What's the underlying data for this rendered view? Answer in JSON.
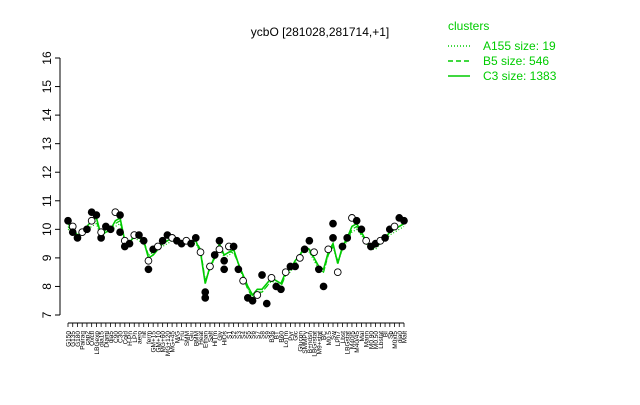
{
  "chart_data": {
    "type": "line",
    "title": "ycbO [281028,281714,+1]",
    "xlabel": "",
    "ylabel": "",
    "ylim": [
      7,
      16
    ],
    "yticks": [
      7,
      8,
      9,
      10,
      11,
      12,
      13,
      14,
      15,
      16
    ],
    "categories": [
      "G150",
      "G135",
      "G180",
      "Pairaq",
      "cap2",
      "Oxctl",
      "LBGexp",
      "dia15",
      "Diami",
      "dia5",
      "C90",
      "C30",
      "Cold",
      "H-Pn",
      "LPh",
      "aero",
      "nit",
      "ferm",
      "GM+15",
      "GM+10",
      "MG+60",
      "MG+120",
      "MG+45",
      "M/G",
      "Fru",
      "SMM",
      "Glu",
      "BMM",
      "Heat",
      "Ethan",
      "Salt",
      "HiTm",
      "Gly",
      "HiOs",
      "S1",
      "S2",
      "S3",
      "S4",
      "S5",
      "S6",
      "S7",
      "S8",
      "S9",
      "B36",
      "BT",
      "B60",
      "LoTm",
      "Pyr",
      "Glc",
      "Glucon",
      "SMMPy",
      "B+ndsn",
      "LBGrstat",
      "M9+stat",
      "BC",
      "M0.5",
      "Sw",
      "LPh7",
      "Lbst",
      "LBGstat",
      "M40/5",
      "M40/45",
      "Mal",
      "Mann",
      "M0.90",
      "M0.50",
      "Lbstat",
      "BI",
      "Sb",
      "M0xt5",
      "dia0",
      "Malt"
    ],
    "series": [
      {
        "name": "C3 size: 1383",
        "line": "solid",
        "values": [
          10.2,
          10.0,
          9.8,
          9.9,
          10.1,
          10.3,
          10.4,
          9.8,
          10.0,
          10.0,
          10.3,
          10.4,
          9.6,
          9.5,
          9.8,
          9.7,
          9.6,
          9.0,
          9.1,
          9.3,
          9.5,
          9.6,
          9.7,
          9.6,
          9.6,
          9.5,
          9.6,
          9.6,
          9.2,
          8.1,
          8.7,
          9.0,
          9.5,
          9.1,
          9.2,
          9.3,
          8.8,
          8.4,
          8.0,
          7.7,
          7.9,
          7.9,
          8.1,
          8.3,
          8.2,
          8.1,
          8.5,
          8.6,
          8.9,
          9.1,
          9.4,
          9.3,
          9.0,
          8.7,
          8.6,
          9.2,
          9.5,
          8.8,
          9.4,
          9.7,
          10.1,
          10.2,
          9.9,
          9.6,
          9.3,
          9.4,
          9.5,
          9.7,
          9.9,
          10.0,
          10.1,
          10.2
        ]
      },
      {
        "name": "B5 size: 546",
        "line": "dashed",
        "values": [
          10.1,
          9.9,
          9.8,
          9.8,
          10.0,
          10.2,
          10.3,
          9.8,
          9.9,
          10.0,
          10.2,
          10.3,
          9.6,
          9.6,
          9.7,
          9.7,
          9.6,
          9.1,
          9.2,
          9.3,
          9.5,
          9.6,
          9.6,
          9.6,
          9.6,
          9.5,
          9.5,
          9.6,
          9.3,
          8.2,
          8.6,
          9.1,
          9.4,
          9.1,
          9.2,
          9.2,
          8.8,
          8.3,
          7.9,
          7.6,
          7.8,
          7.8,
          8.0,
          8.2,
          8.1,
          8.0,
          8.4,
          8.6,
          8.9,
          9.1,
          9.3,
          9.2,
          9.0,
          8.6,
          8.5,
          9.1,
          9.4,
          8.9,
          9.3,
          9.6,
          10.0,
          10.1,
          9.8,
          9.6,
          9.4,
          9.4,
          9.5,
          9.7,
          9.9,
          10.0,
          10.1,
          10.2
        ]
      },
      {
        "name": "A155 size: 19",
        "line": "dotted",
        "values": [
          10.0,
          9.9,
          9.7,
          9.8,
          10.0,
          10.1,
          10.2,
          9.7,
          9.9,
          9.9,
          10.1,
          10.2,
          9.6,
          9.6,
          9.7,
          9.6,
          9.5,
          9.1,
          9.1,
          9.3,
          9.4,
          9.5,
          9.6,
          9.5,
          9.5,
          9.5,
          9.5,
          9.5,
          9.2,
          8.2,
          8.6,
          9.0,
          9.4,
          9.0,
          9.1,
          9.2,
          8.8,
          8.3,
          7.9,
          7.7,
          7.8,
          7.8,
          8.0,
          8.2,
          8.1,
          8.0,
          8.4,
          8.5,
          8.8,
          9.0,
          9.3,
          9.2,
          8.9,
          8.6,
          8.5,
          9.1,
          9.4,
          8.8,
          9.3,
          9.6,
          9.9,
          10.0,
          9.8,
          9.5,
          9.3,
          9.3,
          9.5,
          9.6,
          9.8,
          9.9,
          10.0,
          10.1
        ]
      }
    ],
    "points": [
      {
        "cat": 0,
        "y": 10.3
      },
      {
        "cat": 1,
        "y": 10.1
      },
      {
        "cat": 1,
        "y": 9.9
      },
      {
        "cat": 2,
        "y": 9.7
      },
      {
        "cat": 3,
        "y": 9.9
      },
      {
        "cat": 4,
        "y": 10.0
      },
      {
        "cat": 5,
        "y": 10.6
      },
      {
        "cat": 5,
        "y": 10.3
      },
      {
        "cat": 6,
        "y": 10.5
      },
      {
        "cat": 7,
        "y": 9.7
      },
      {
        "cat": 7,
        "y": 9.9
      },
      {
        "cat": 8,
        "y": 10.1
      },
      {
        "cat": 9,
        "y": 10.0
      },
      {
        "cat": 10,
        "y": 10.6
      },
      {
        "cat": 11,
        "y": 10.5
      },
      {
        "cat": 11,
        "y": 9.9
      },
      {
        "cat": 12,
        "y": 9.6
      },
      {
        "cat": 12,
        "y": 9.4
      },
      {
        "cat": 13,
        "y": 9.5
      },
      {
        "cat": 14,
        "y": 9.8
      },
      {
        "cat": 15,
        "y": 9.8
      },
      {
        "cat": 16,
        "y": 9.6
      },
      {
        "cat": 17,
        "y": 8.9
      },
      {
        "cat": 17,
        "y": 8.6
      },
      {
        "cat": 18,
        "y": 9.3
      },
      {
        "cat": 19,
        "y": 9.4
      },
      {
        "cat": 20,
        "y": 9.6
      },
      {
        "cat": 21,
        "y": 9.8
      },
      {
        "cat": 22,
        "y": 9.7
      },
      {
        "cat": 23,
        "y": 9.6
      },
      {
        "cat": 24,
        "y": 9.5
      },
      {
        "cat": 25,
        "y": 9.6
      },
      {
        "cat": 26,
        "y": 9.5
      },
      {
        "cat": 27,
        "y": 9.7
      },
      {
        "cat": 28,
        "y": 9.2
      },
      {
        "cat": 29,
        "y": 7.8
      },
      {
        "cat": 29,
        "y": 7.6
      },
      {
        "cat": 30,
        "y": 8.7
      },
      {
        "cat": 31,
        "y": 9.1
      },
      {
        "cat": 32,
        "y": 9.6
      },
      {
        "cat": 32,
        "y": 9.3
      },
      {
        "cat": 33,
        "y": 8.9
      },
      {
        "cat": 33,
        "y": 8.6
      },
      {
        "cat": 34,
        "y": 9.4
      },
      {
        "cat": 35,
        "y": 9.4
      },
      {
        "cat": 36,
        "y": 8.6
      },
      {
        "cat": 37,
        "y": 8.2
      },
      {
        "cat": 38,
        "y": 7.6
      },
      {
        "cat": 39,
        "y": 7.5
      },
      {
        "cat": 40,
        "y": 7.7
      },
      {
        "cat": 41,
        "y": 8.4
      },
      {
        "cat": 42,
        "y": 7.4
      },
      {
        "cat": 43,
        "y": 8.3
      },
      {
        "cat": 44,
        "y": 8.0
      },
      {
        "cat": 45,
        "y": 7.9
      },
      {
        "cat": 46,
        "y": 8.5
      },
      {
        "cat": 47,
        "y": 8.7
      },
      {
        "cat": 48,
        "y": 8.7
      },
      {
        "cat": 49,
        "y": 9.0
      },
      {
        "cat": 50,
        "y": 9.3
      },
      {
        "cat": 51,
        "y": 9.6
      },
      {
        "cat": 52,
        "y": 9.2
      },
      {
        "cat": 53,
        "y": 8.6
      },
      {
        "cat": 54,
        "y": 8.0
      },
      {
        "cat": 55,
        "y": 9.3
      },
      {
        "cat": 56,
        "y": 10.2
      },
      {
        "cat": 56,
        "y": 9.7
      },
      {
        "cat": 57,
        "y": 8.5
      },
      {
        "cat": 58,
        "y": 9.4
      },
      {
        "cat": 59,
        "y": 9.7
      },
      {
        "cat": 60,
        "y": 10.4
      },
      {
        "cat": 61,
        "y": 10.3
      },
      {
        "cat": 62,
        "y": 10.0
      },
      {
        "cat": 63,
        "y": 9.6
      },
      {
        "cat": 64,
        "y": 9.4
      },
      {
        "cat": 65,
        "y": 9.5
      },
      {
        "cat": 66,
        "y": 9.6
      },
      {
        "cat": 67,
        "y": 9.7
      },
      {
        "cat": 68,
        "y": 10.0
      },
      {
        "cat": 69,
        "y": 10.1
      },
      {
        "cat": 70,
        "y": 10.4
      },
      {
        "cat": 71,
        "y": 10.3
      }
    ],
    "legend": {
      "title": "clusters",
      "placement": "top-right"
    },
    "colors": {
      "line": "#00cc00",
      "legend_text": "#00cc00",
      "points": "#000000",
      "axis": "#000000"
    },
    "grid": false
  }
}
